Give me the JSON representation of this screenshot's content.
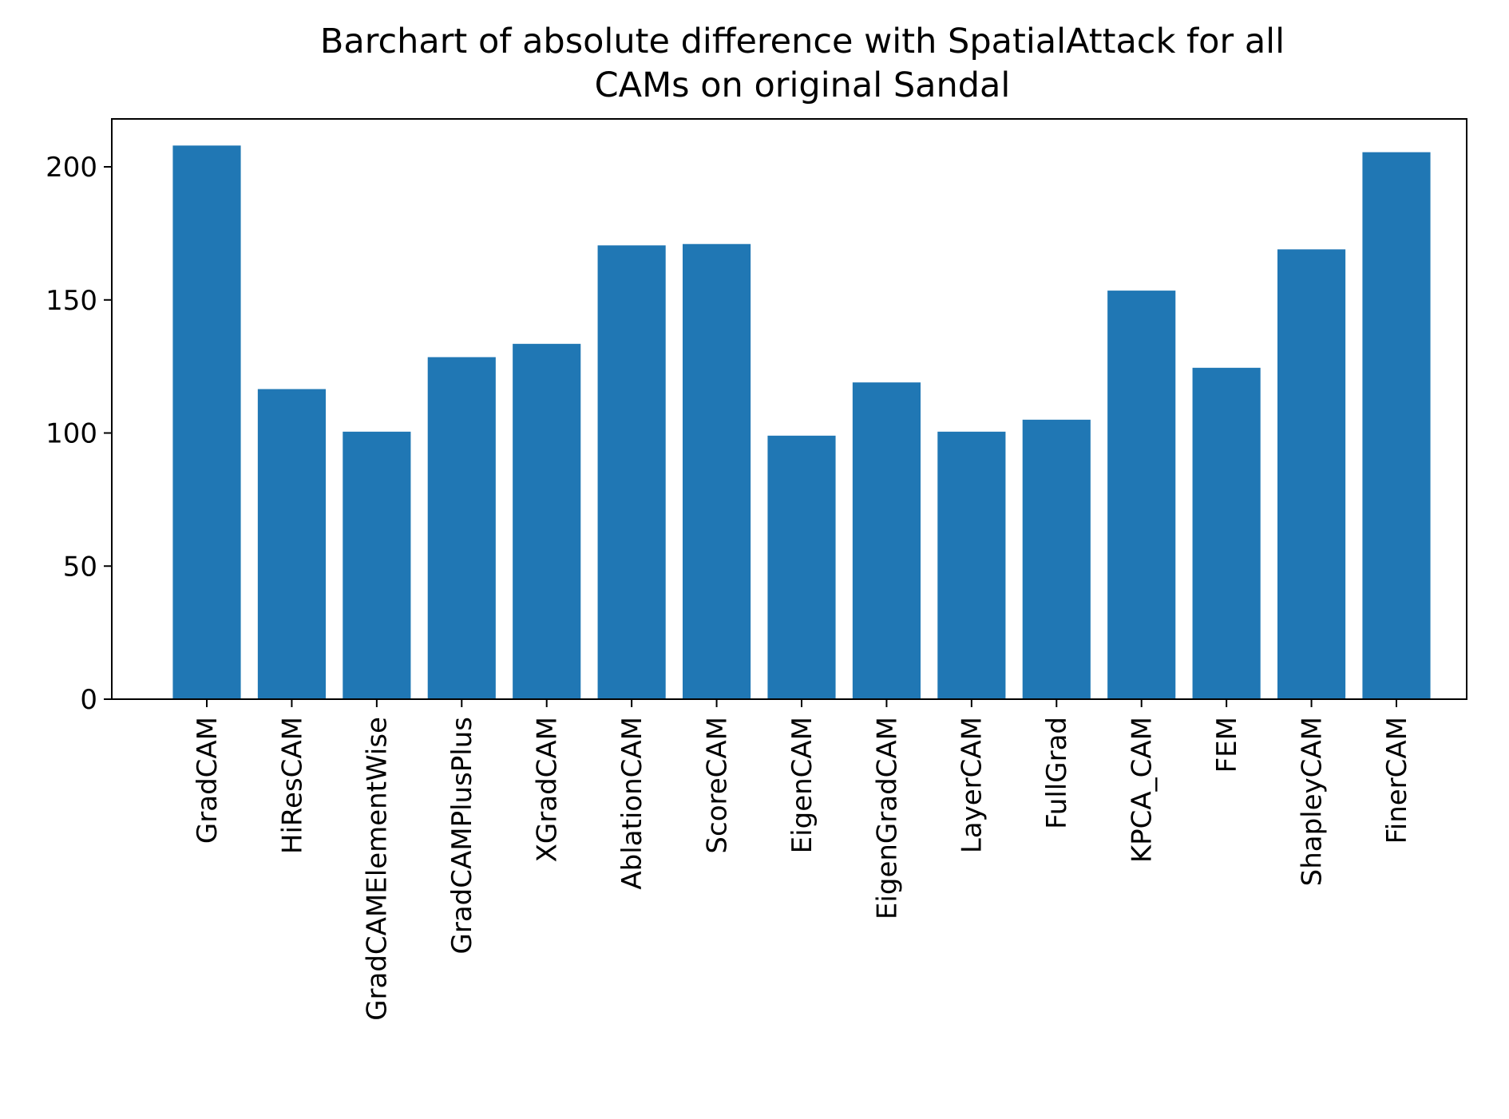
{
  "chart_data": {
    "type": "bar",
    "title_lines": [
      "Barchart of absolute difference with SpatialAttack for all",
      "CAMs on original Sandal"
    ],
    "xlabel": "",
    "ylabel": "",
    "categories": [
      "GradCAM",
      "HiResCAM",
      "GradCAMElementWise",
      "GradCAMPlusPlus",
      "XGradCAM",
      "AblationCAM",
      "ScoreCAM",
      "EigenCAM",
      "EigenGradCAM",
      "LayerCAM",
      "FullGrad",
      "KPCA_CAM",
      "FEM",
      "ShapleyCAM",
      "FinerCAM"
    ],
    "values": [
      208,
      116.5,
      100.5,
      128.5,
      133.5,
      170.5,
      171,
      99,
      119,
      100.5,
      105,
      153.5,
      124.5,
      169,
      205.5
    ],
    "ylim": [
      0,
      218
    ],
    "yticks": [
      0,
      50,
      100,
      150,
      200
    ],
    "bar_color": "#2077b4",
    "grid": false,
    "legend": "none"
  }
}
